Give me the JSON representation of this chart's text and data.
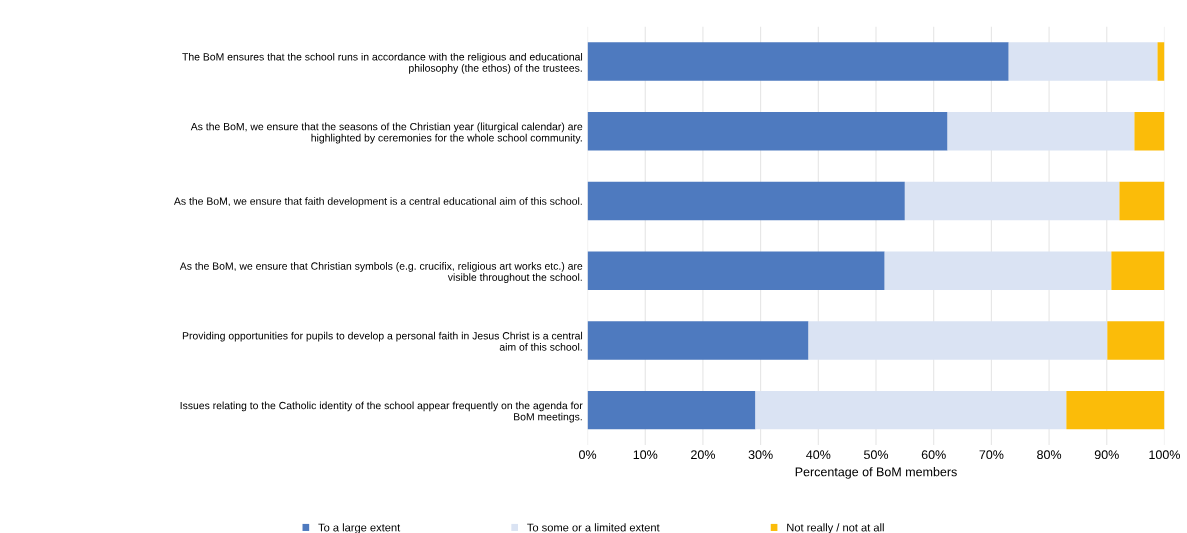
{
  "chart_data": {
    "type": "bar",
    "orientation": "horizontal",
    "stacked": true,
    "xlabel": "Percentage of BoM members",
    "categories": [
      "The BoM ensures that the school runs in accordance with the religious and educational\nphilosophy (the ethos) of the trustees.",
      "As the BoM, we ensure that the seasons of the Christian year (liturgical calendar) are\nhighlighted by ceremonies for the whole school community.",
      "As the BoM, we ensure that faith development is a central educational aim of this school.",
      "As the BoM, we ensure that Christian symbols (e.g. crucifix, religious art works etc.) are\nvisible throughout the school.",
      "Providing opportunities for pupils to develop a personal faith in Jesus Christ is a central\naim of this school.",
      "Issues relating to the Catholic identity of the school appear frequently on the agenda for\nBoM meetings."
    ],
    "series": [
      {
        "name": "To a large extent",
        "color": "#4e7abf",
        "values": [
          73,
          62.4,
          55,
          51.5,
          38.3,
          29.1
        ]
      },
      {
        "name": "To some or a limited extent",
        "color": "#dae3f3",
        "values": [
          25.8,
          32.4,
          37.2,
          39.3,
          51.8,
          53.9
        ]
      },
      {
        "name": "Not really / not at all",
        "color": "#fbbc09",
        "values": [
          1.2,
          5.2,
          7.8,
          9.2,
          9.9,
          17.0
        ]
      }
    ],
    "xlim": [
      0,
      100
    ],
    "xticks": [
      {
        "value": 0,
        "label": "0%"
      },
      {
        "value": 10,
        "label": "10%"
      },
      {
        "value": 20,
        "label": "20%"
      },
      {
        "value": 30,
        "label": "30%"
      },
      {
        "value": 40,
        "label": "40%"
      },
      {
        "value": 50,
        "label": "50%"
      },
      {
        "value": 60,
        "label": "60%"
      },
      {
        "value": 70,
        "label": "70%"
      },
      {
        "value": 80,
        "label": "80%"
      },
      {
        "value": 90,
        "label": "90%"
      },
      {
        "value": 100,
        "label": "100%"
      }
    ],
    "grid": "x",
    "legend": "bottom"
  }
}
